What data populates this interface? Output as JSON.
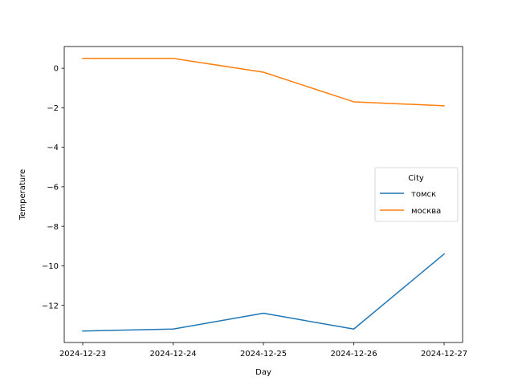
{
  "chart_data": {
    "type": "line",
    "title": "",
    "xlabel": "Day",
    "ylabel": "Temperature",
    "categories": [
      "2024-12-23",
      "2024-12-24",
      "2024-12-25",
      "2024-12-26",
      "2024-12-27"
    ],
    "ylim": [
      -13.88,
      1.1
    ],
    "yticks": [
      0,
      -2,
      -4,
      -6,
      -8,
      -10,
      -12
    ],
    "ytick_labels": [
      "0",
      "−2",
      "−4",
      "−6",
      "−8",
      "−10",
      "−12"
    ],
    "grid": false,
    "legend": {
      "title": "City",
      "placement": "center-right",
      "entries": [
        "томск",
        "москва"
      ]
    },
    "series": [
      {
        "name": "томск",
        "color": "#1f77b4",
        "values": [
          -13.3,
          -13.2,
          -12.4,
          -13.2,
          -9.4
        ]
      },
      {
        "name": "москва",
        "color": "#ff7f0e",
        "values": [
          0.5,
          0.5,
          -0.2,
          -1.7,
          -1.9
        ]
      }
    ]
  }
}
